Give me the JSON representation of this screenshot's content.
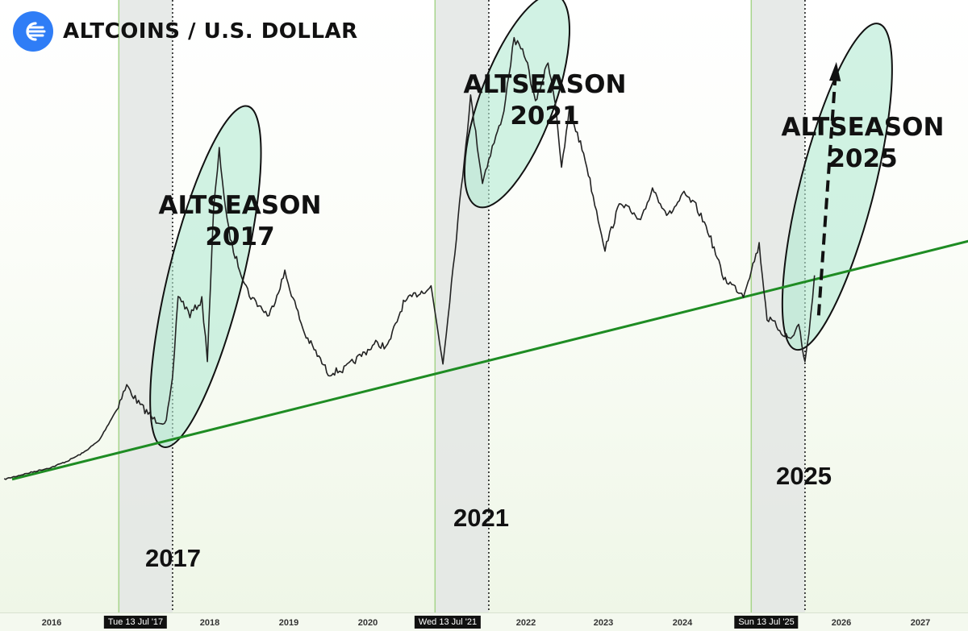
{
  "header": {
    "title": "ALTCOINS / U.S. DOLLAR",
    "logo_icon": "speed-lines-logo"
  },
  "annotations": {
    "season_2017": [
      "ALTSEASON",
      "2017"
    ],
    "season_2021": [
      "ALTSEASON",
      "2021"
    ],
    "season_2025": [
      "ALTSEASON",
      "2025"
    ],
    "low_2017": "2017",
    "low_2021": "2021",
    "low_2025": "2025"
  },
  "xaxis": {
    "ticks": [
      "2016",
      "2018",
      "2019",
      "2020",
      "2022",
      "2023",
      "2024",
      "2026",
      "2027"
    ],
    "date_markers": [
      "Tue 13 Jul '17",
      "Wed 13 Jul '21",
      "Sun 13 Jul '25"
    ]
  },
  "colors": {
    "trendline": "#1e8c23",
    "ellipse_fill": "#b3ead2",
    "shaded_band": "#e3e6e4",
    "band_edge": "#a6d48a",
    "candles": "#222222",
    "logo": "#2f7df6"
  },
  "chart_data": {
    "type": "line",
    "title": "ALTCOINS / U.S. DOLLAR",
    "xlabel": "",
    "ylabel": "",
    "y_axis_shown": false,
    "x_range": [
      2015.4,
      2027.6
    ],
    "log_scale": true,
    "series": [
      {
        "x": [
          2015.4,
          2015.6,
          2015.8,
          2016.0,
          2016.2,
          2016.4,
          2016.6,
          2016.8,
          2016.95,
          2017.1,
          2017.3,
          2017.45,
          2017.53,
          2017.6,
          2017.75,
          2017.9,
          2017.97,
          2018.05,
          2018.12,
          2018.22,
          2018.3,
          2018.5,
          2018.75,
          2018.95,
          2019.2,
          2019.5,
          2019.7,
          2019.9,
          2020.1,
          2020.25,
          2020.45,
          2020.6,
          2020.8,
          2020.95,
          2021.1,
          2021.3,
          2021.45,
          2021.53,
          2021.62,
          2021.7,
          2021.85,
          2022.0,
          2022.12,
          2022.28,
          2022.38,
          2022.45,
          2022.55,
          2022.75,
          2022.85,
          2023.0,
          2023.2,
          2023.45,
          2023.6,
          2023.8,
          2024.0,
          2024.15,
          2024.3,
          2024.5,
          2024.75,
          2024.95,
          2025.05,
          2025.15,
          2025.25,
          2025.35,
          2025.45,
          2025.53,
          2025.58,
          2025.65
        ],
        "values": [
          10.3,
          10.6,
          10.9,
          11.2,
          11.7,
          12.4,
          13.5,
          16.4,
          19.8,
          17.5,
          15.6,
          15.4,
          20.5,
          37.4,
          32.5,
          36.0,
          24.0,
          68.0,
          102.2,
          62.0,
          50.7,
          37.4,
          32.2,
          43.6,
          28.5,
          21.6,
          22.2,
          24.3,
          26.6,
          26.0,
          35.2,
          37.4,
          39.5,
          23.2,
          50.7,
          148.8,
          82.2,
          96.6,
          113.3,
          126.8,
          223.2,
          196.1,
          142.3,
          190.8,
          139.8,
          89.3,
          136.5,
          96.6,
          74.6,
          51.6,
          72.1,
          61.8,
          78.9,
          64.8,
          75.4,
          69.3,
          58.8,
          42.1,
          37.4,
          52.9,
          31.8,
          30.4,
          28.6,
          27.4,
          30.4,
          23.2,
          28.6,
          42.8
        ],
        "note_projection": [
          [
            2025.58,
            28.6
          ],
          [
            2026.1,
            181.8
          ]
        ]
      }
    ],
    "trendline": {
      "x": [
        2015.5,
        2027.6
      ],
      "values": [
        10.3,
        54.4
      ]
    },
    "shaded_periods": [
      [
        2016.85,
        2017.53
      ],
      [
        2020.85,
        2021.53
      ],
      [
        2024.85,
        2025.53
      ]
    ],
    "highlighted_cycles": [
      "2017",
      "2021",
      "2025"
    ]
  }
}
